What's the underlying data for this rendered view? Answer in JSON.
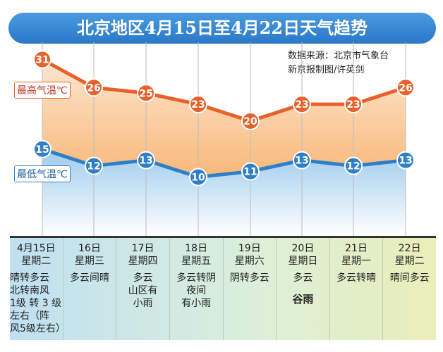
{
  "title": "北京地区4月15日至4月22日天气趋势",
  "source": "数据来源：北京市气象台",
  "credit": "新京报制图/许英剑",
  "chart_data": {
    "type": "line",
    "categories": [
      "4月15日",
      "16日",
      "17日",
      "18日",
      "19日",
      "20日",
      "21日",
      "22日"
    ],
    "series": [
      {
        "name": "最高气温℃",
        "values": [
          31,
          26,
          25,
          23,
          20,
          23,
          23,
          26
        ],
        "color": "#e8602a"
      },
      {
        "name": "最低气温℃",
        "values": [
          15,
          12,
          13,
          10,
          11,
          13,
          12,
          13
        ],
        "color": "#2f7fc8"
      }
    ]
  },
  "days": [
    {
      "date": "4月15日",
      "weekday": "星期二",
      "weather": "晴转多云\n北转南风\n1级 转 3 级\n左右（阵\n风5级左右）"
    },
    {
      "date": "16日",
      "weekday": "星期三",
      "weather": "多云间晴"
    },
    {
      "date": "17日",
      "weekday": "星期四",
      "weather": "多云\n山区有\n小雨"
    },
    {
      "date": "18日",
      "weekday": "星期五",
      "weather": "多云转阴\n夜间\n有小雨"
    },
    {
      "date": "19日",
      "weekday": "星期六",
      "weather": "阴转多云"
    },
    {
      "date": "20日",
      "weekday": "星期日",
      "weather": "多云",
      "term": "谷雨"
    },
    {
      "date": "21日",
      "weekday": "星期一",
      "weather": "多云转晴"
    },
    {
      "date": "22日",
      "weekday": "星期二",
      "weather": "晴间多云"
    }
  ]
}
